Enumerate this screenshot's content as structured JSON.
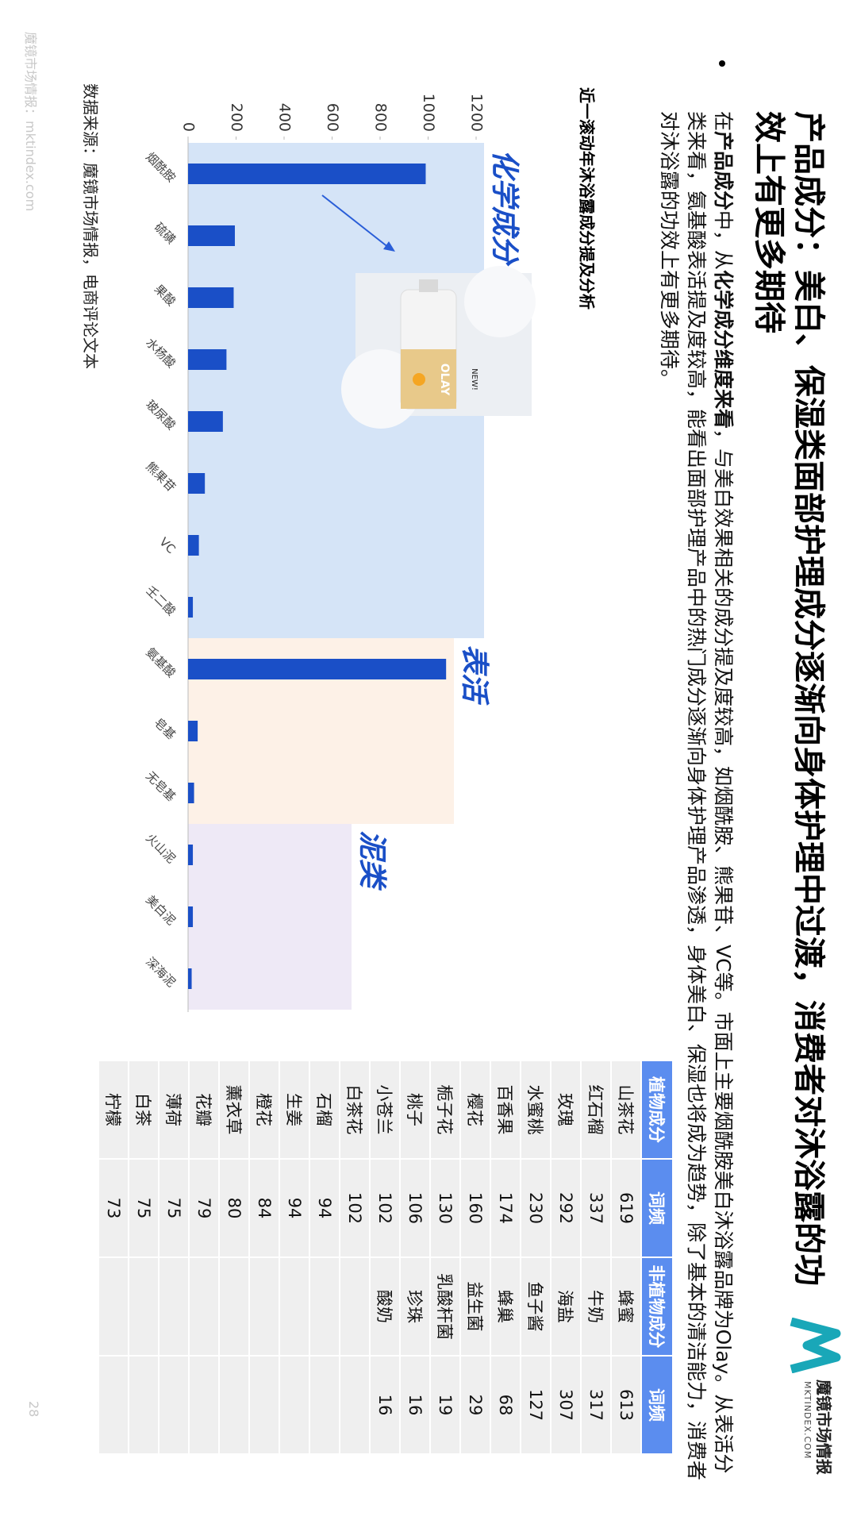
{
  "header": {
    "logo_name": "魔镜市场情报",
    "logo_url": "MKTINDEX.COM",
    "title": "产品成分：美白、保湿类面部护理成分逐渐向身体护理中过渡，消费者对沐浴露的功效上有更多期待"
  },
  "body": {
    "segments": [
      {
        "text": "在",
        "bold": false
      },
      {
        "text": "产品成分",
        "bold": true
      },
      {
        "text": "中，从",
        "bold": false
      },
      {
        "text": "化学成分维度来看",
        "bold": true
      },
      {
        "text": "，与美白效果相关的成分提及度较高，如烟酰胺、熊果苷、VC等。市面上主要烟酰胺美白沐浴露品牌为Olay。从表活分类来看，氨基酸表活提及度较高，能看出面部护理产品中的热门成分逐渐向身体护理产品渗透，身体美白、保湿也将成为趋势，除了基本的清洁能力，消费者对沐浴露的功效上有更多期待。",
        "bold": false
      }
    ]
  },
  "chart_data": {
    "type": "bar",
    "title": "近一滚动年沐浴露成分提及分析",
    "categories": [
      "烟酰胺",
      "硫磺",
      "果酸",
      "水杨酸",
      "玻尿酸",
      "熊果苷",
      "VC",
      "壬二酸",
      "氨基酸",
      "皂基",
      "无皂基",
      "火山泥",
      "美白泥",
      "深海泥"
    ],
    "values": [
      990,
      195,
      190,
      160,
      145,
      70,
      45,
      20,
      1075,
      40,
      25,
      20,
      20,
      15
    ],
    "color": "#1a4fc7",
    "ylim": [
      0,
      1200
    ],
    "yticks": [
      0,
      200,
      400,
      600,
      800,
      1000,
      1200
    ],
    "groups": [
      {
        "label": "化学成分",
        "color": "#d5e4f7"
      },
      {
        "label": "表活",
        "color": "#fdf1e7"
      },
      {
        "label": "泥类",
        "color": "#eee9f6"
      }
    ]
  },
  "table": {
    "columns": [
      "植物成分",
      "词频",
      "非植物成分",
      "词频"
    ],
    "rows": [
      [
        "山茶花",
        619,
        "蜂蜜",
        613
      ],
      [
        "红石榴",
        337,
        "牛奶",
        317
      ],
      [
        "玫瑰",
        292,
        "海盐",
        307
      ],
      [
        "水蜜桃",
        230,
        "鱼子酱",
        127
      ],
      [
        "百香果",
        174,
        "蜂巢",
        68
      ],
      [
        "樱花",
        160,
        "益生菌",
        29
      ],
      [
        "栀子花",
        130,
        "乳酸杆菌",
        19
      ],
      [
        "桃子",
        106,
        "珍珠",
        16
      ],
      [
        "小苍兰",
        102,
        "酸奶",
        16
      ],
      [
        "白茶花",
        102
      ],
      [
        "石榴",
        94
      ],
      [
        "生姜",
        94
      ],
      [
        "橙花",
        84
      ],
      [
        "薰衣草",
        80
      ],
      [
        "花瓣",
        79
      ],
      [
        "薄荷",
        75
      ],
      [
        "白茶",
        75
      ],
      [
        "柠檬",
        73
      ]
    ]
  },
  "footer": {
    "source": "数据来源：魔镜市场情报，电商评论文本",
    "watermark": "魔镜市场情报：mktindex.com",
    "page": 28
  }
}
